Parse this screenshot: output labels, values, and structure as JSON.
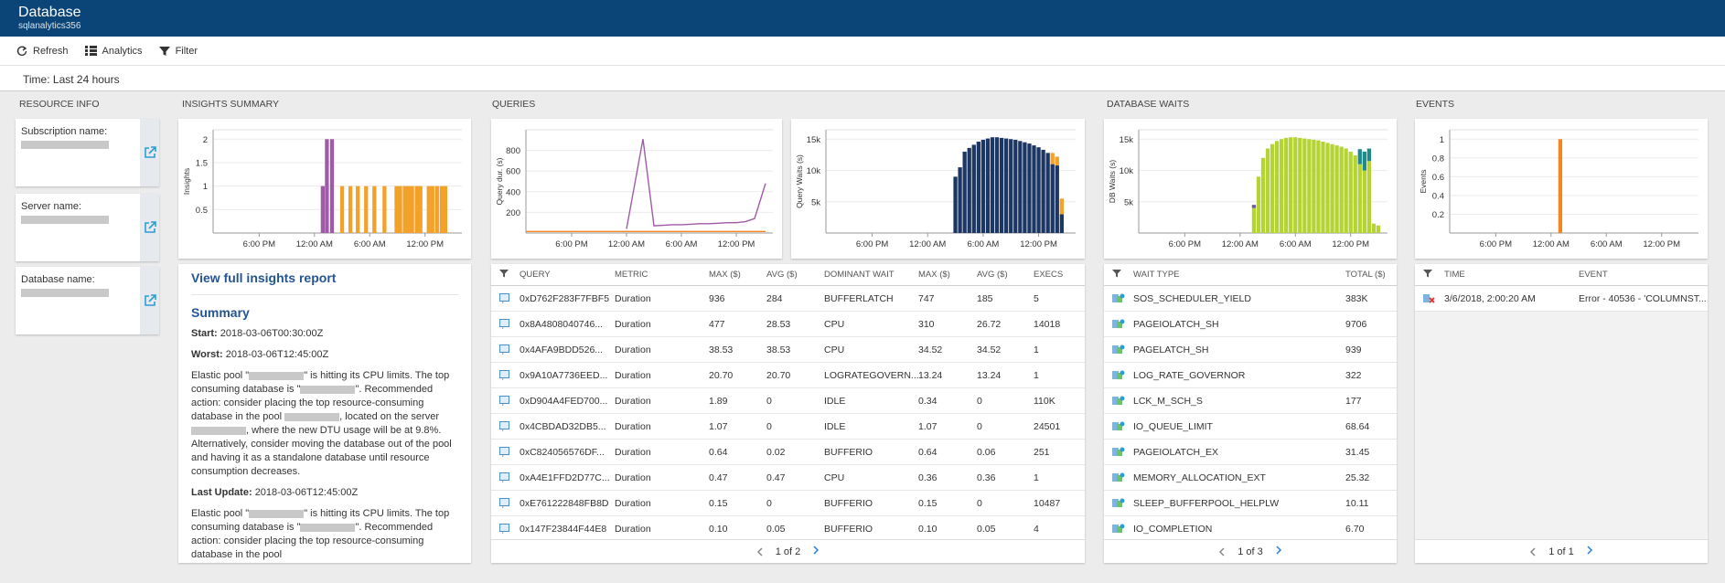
{
  "header": {
    "title": "Database",
    "subtitle": "sqlanalytics356"
  },
  "toolbar": [
    "Refresh",
    "Analytics",
    "Filter"
  ],
  "time_range": "Time: Last 24 hours",
  "sections": [
    "RESOURCE INFO",
    "INSIGHTS SUMMARY",
    "QUERIES",
    "DATABASE WAITS",
    "EVENTS"
  ],
  "resource_info": [
    "Subscription name:",
    "Server name:",
    "Database name:"
  ],
  "chart_data": [
    {
      "type": "bar",
      "y_label": "Insights",
      "xlim": [
        0,
        27
      ],
      "ylim": [
        0,
        2.2
      ],
      "yticks": [
        0.5,
        1,
        1.5,
        2
      ],
      "xticks": [
        {
          "value": 5,
          "label": "6:00 PM"
        },
        {
          "value": 11,
          "label": "12:00 AM"
        },
        {
          "value": 17,
          "label": "6:00 AM"
        },
        {
          "value": 23,
          "label": "12:00 PM"
        }
      ],
      "x": [
        11.9,
        12.35,
        12.9,
        14.0,
        14.9,
        15.7,
        16.6,
        17.5,
        18.6,
        19.9,
        20.3,
        20.8,
        21.2,
        21.6,
        22.1,
        22.5,
        23.4,
        23.8,
        24.3,
        24.8,
        25.2
      ],
      "series": [
        {
          "color": "#a05ba8",
          "values": [
            1,
            2,
            2,
            null,
            null,
            null,
            null,
            null,
            null,
            null,
            null,
            null,
            null,
            null,
            null,
            null,
            null,
            null,
            null,
            null,
            null
          ]
        },
        {
          "color": "#f4a12a",
          "values": [
            null,
            null,
            null,
            1,
            1,
            1,
            1,
            1,
            1,
            1,
            1,
            1,
            1,
            1,
            1,
            1,
            1,
            1,
            1,
            1,
            1
          ]
        }
      ]
    },
    {
      "type": "line",
      "y_label": "Query dur. (s)",
      "xlim": [
        0,
        27
      ],
      "ylim": [
        0,
        1000
      ],
      "yticks": [
        200,
        400,
        600,
        800
      ],
      "xticks": [
        {
          "value": 5,
          "label": "6:00 PM"
        },
        {
          "value": 11,
          "label": "12:00 AM"
        },
        {
          "value": 17,
          "label": "6:00 AM"
        },
        {
          "value": 23,
          "label": "12:00 PM"
        }
      ],
      "x": [
        0,
        11,
        12.8,
        14,
        15,
        16,
        17,
        18,
        19,
        20,
        21,
        22,
        23,
        24,
        25,
        26.2
      ],
      "series": [
        {
          "color": "#a05ba8",
          "values": [
            null,
            40,
            910,
            70,
            75,
            80,
            80,
            85,
            90,
            90,
            95,
            100,
            100,
            110,
            140,
            480
          ]
        },
        {
          "color": "#f4861f",
          "values": [
            15,
            15,
            15,
            15,
            15,
            15,
            15,
            15,
            15,
            15,
            15,
            15,
            15,
            15,
            15,
            15
          ]
        }
      ]
    },
    {
      "type": "bar",
      "y_label": "Query Waits (s)",
      "xlim": [
        0,
        27
      ],
      "ylim": [
        0,
        16500
      ],
      "yticks": [
        {
          "value": 5000,
          "label": "5k"
        },
        {
          "value": 10000,
          "label": "10k"
        },
        {
          "value": 15000,
          "label": "15k"
        }
      ],
      "xticks": [
        {
          "value": 5,
          "label": "6:00 PM"
        },
        {
          "value": 11,
          "label": "12:00 AM"
        },
        {
          "value": 17,
          "label": "6:00 AM"
        },
        {
          "value": 23,
          "label": "12:00 PM"
        }
      ],
      "x": [
        14,
        14.5,
        15,
        15.5,
        16,
        16.5,
        17,
        17.5,
        18,
        18.5,
        19,
        19.5,
        20,
        20.5,
        21,
        21.5,
        22,
        22.5,
        23,
        23.5,
        24,
        24.5,
        25,
        25.5
      ],
      "series": [
        {
          "color": "#1c3764",
          "values": [
            9000,
            10500,
            13000,
            13600,
            14100,
            14600,
            14900,
            15100,
            15300,
            15300,
            15200,
            15100,
            15000,
            14900,
            14700,
            14500,
            14300,
            14000,
            13700,
            13300,
            12800,
            11000,
            10800,
            3000
          ]
        },
        {
          "color": "#f4a12a",
          "values": [
            null,
            null,
            null,
            null,
            null,
            null,
            null,
            null,
            null,
            null,
            null,
            null,
            null,
            null,
            null,
            null,
            null,
            null,
            null,
            null,
            null,
            1800,
            1400,
            2500
          ]
        }
      ]
    },
    {
      "type": "bar",
      "y_label": "DB Waits (s)",
      "xlim": [
        0,
        27
      ],
      "ylim": [
        0,
        16500
      ],
      "yticks": [
        {
          "value": 5000,
          "label": "5k"
        },
        {
          "value": 10000,
          "label": "10k"
        },
        {
          "value": 15000,
          "label": "15k"
        }
      ],
      "xticks": [
        {
          "value": 5,
          "label": "6:00 PM"
        },
        {
          "value": 11,
          "label": "12:00 AM"
        },
        {
          "value": 17,
          "label": "6:00 AM"
        },
        {
          "value": 23,
          "label": "12:00 PM"
        }
      ],
      "x": [
        12.5,
        13,
        13.5,
        14,
        14.5,
        15,
        15.5,
        16,
        16.5,
        17,
        17.5,
        18,
        18.5,
        19,
        19.5,
        20,
        20.5,
        21,
        21.5,
        22,
        22.5,
        23,
        23.5,
        24,
        24.5,
        25,
        25.5,
        26
      ],
      "series": [
        {
          "color": "#b5d332",
          "values": [
            4000,
            9000,
            12000,
            13500,
            14200,
            14700,
            15000,
            15200,
            15300,
            15300,
            15200,
            15100,
            15000,
            14900,
            14800,
            14600,
            14400,
            14200,
            14000,
            13800,
            13500,
            13000,
            12400,
            11000,
            10000,
            11500,
            1500,
            1200
          ]
        },
        {
          "color": "#1f8a8a",
          "values": [
            null,
            null,
            null,
            null,
            null,
            null,
            null,
            null,
            null,
            null,
            null,
            null,
            null,
            null,
            null,
            null,
            null,
            null,
            null,
            null,
            null,
            null,
            null,
            2400,
            3000,
            2000,
            null,
            null
          ]
        },
        {
          "color": "#6b5b95",
          "values": [
            500,
            null,
            null,
            null,
            null,
            null,
            null,
            null,
            null,
            null,
            null,
            null,
            null,
            null,
            null,
            null,
            null,
            null,
            null,
            null,
            null,
            null,
            null,
            null,
            null,
            null,
            null,
            null
          ]
        }
      ]
    },
    {
      "type": "bar",
      "y_label": "Events",
      "xlim": [
        0,
        27
      ],
      "ylim": [
        0,
        1.1
      ],
      "yticks": [
        0.2,
        0.4,
        0.6,
        0.8,
        1
      ],
      "xticks": [
        {
          "value": 5,
          "label": "6:00 PM"
        },
        {
          "value": 11,
          "label": "12:00 AM"
        },
        {
          "value": 17,
          "label": "6:00 AM"
        },
        {
          "value": 23,
          "label": "12:00 PM"
        }
      ],
      "x": [
        12
      ],
      "series": [
        {
          "color": "#f4861f",
          "values": [
            1
          ]
        }
      ]
    }
  ],
  "insights": {
    "link": "View full insights report",
    "summary": "Summary",
    "start_label": "Start:",
    "start": "2018-03-06T00:30:00Z",
    "worst_label": "Worst:",
    "worst": "2018-03-06T12:45:00Z",
    "description": [
      "Elastic pool \"",
      "\" is hitting its CPU limits. The top consuming database is \"",
      "\". Recommended action: consider placing the top resource-consuming database in the pool ",
      ", located on the server ",
      ", where the new DTU usage will be at 9.8%. Alternatively, consider moving the database out of the pool and having it as a standalone database until resource consumption decreases."
    ],
    "last_update_label": "Last Update:",
    "last_update": "2018-03-06T12:45:00Z",
    "description_2": [
      "Elastic pool \"",
      "\" is hitting its CPU limits. The top consuming database is \"",
      "\". Recommended action: consider placing the top resource-consuming database in the pool"
    ]
  },
  "queries_table": {
    "columns": [
      "QUERY",
      "METRIC",
      "MAX ($)",
      "AVG ($)",
      "DOMINANT WAIT",
      "MAX ($)",
      "AVG ($)",
      "EXECS"
    ],
    "rows": [
      [
        "0xD762F283F7FBF5",
        "Duration",
        "936",
        "284",
        "BUFFERLATCH",
        "747",
        "185",
        "5"
      ],
      [
        "0x8A4808040746...",
        "Duration",
        "477",
        "28.53",
        "CPU",
        "310",
        "26.72",
        "14018"
      ],
      [
        "0x4AFA9BDD526...",
        "Duration",
        "38.53",
        "38.53",
        "CPU",
        "34.52",
        "34.52",
        "1"
      ],
      [
        "0x9A10A7736EED...",
        "Duration",
        "20.70",
        "20.70",
        "LOGRATEGOVERN...",
        "13.24",
        "13.24",
        "1"
      ],
      [
        "0xD904A4FED700...",
        "Duration",
        "1.89",
        "0",
        "IDLE",
        "0.34",
        "0",
        "110K"
      ],
      [
        "0x4CBDAD32DB5...",
        "Duration",
        "1.07",
        "0",
        "IDLE",
        "1.07",
        "0",
        "24501"
      ],
      [
        "0xC824056576DF...",
        "Duration",
        "0.64",
        "0.02",
        "BUFFERIO",
        "0.64",
        "0.06",
        "251"
      ],
      [
        "0xA4E1FFD2D77C...",
        "Duration",
        "0.47",
        "0.47",
        "CPU",
        "0.36",
        "0.36",
        "1"
      ],
      [
        "0xE761222848FB8D",
        "Duration",
        "0.15",
        "0",
        "BUFFERIO",
        "0.15",
        "0",
        "10487"
      ],
      [
        "0x147F23844F44E8",
        "Duration",
        "0.10",
        "0.05",
        "BUFFERIO",
        "0.10",
        "0.05",
        "4"
      ]
    ],
    "pager": "1 of 2"
  },
  "waits_table": {
    "columns": [
      "WAIT TYPE",
      "TOTAL ($)"
    ],
    "rows": [
      [
        "SOS_SCHEDULER_YIELD",
        "383K"
      ],
      [
        "PAGEIOLATCH_SH",
        "9706"
      ],
      [
        "PAGELATCH_SH",
        "939"
      ],
      [
        "LOG_RATE_GOVERNOR",
        "322"
      ],
      [
        "LCK_M_SCH_S",
        "177"
      ],
      [
        "IO_QUEUE_LIMIT",
        "68.64"
      ],
      [
        "PAGEIOLATCH_EX",
        "31.45"
      ],
      [
        "MEMORY_ALLOCATION_EXT",
        "25.32"
      ],
      [
        "SLEEP_BUFFERPOOL_HELPLW",
        "10.11"
      ],
      [
        "IO_COMPLETION",
        "6.70"
      ]
    ],
    "pager": "1 of 3"
  },
  "events_table": {
    "columns": [
      "TIME",
      "EVENT"
    ],
    "rows": [
      [
        "3/6/2018, 2:00:20 AM",
        "Error - 40536 - 'COLUMNST..."
      ]
    ],
    "pager": "1 of 1"
  }
}
